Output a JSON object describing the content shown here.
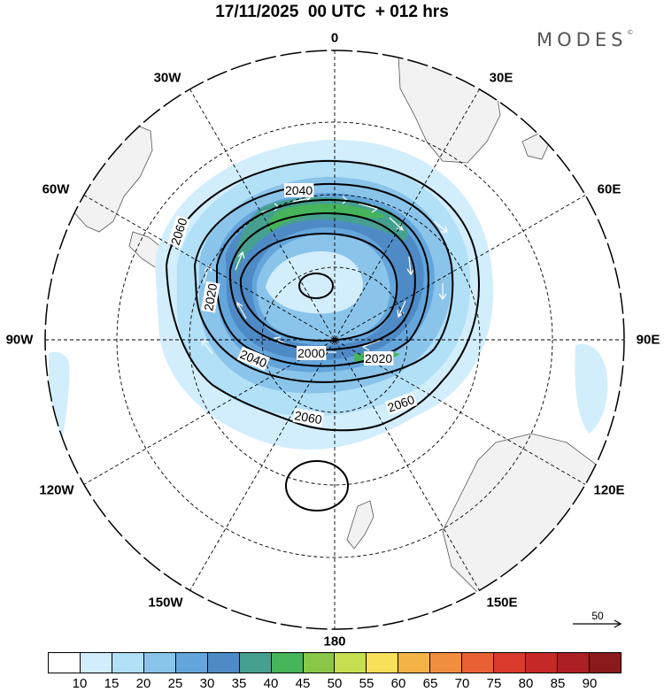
{
  "title": "17/11/2025  00 UTC  + 012 hrs",
  "brand": "MODES",
  "brand_mark": "©",
  "map": {
    "projection": "south-polar-stereographic",
    "field": "wind speed (shaded) and geopotential height (contours)",
    "longitude_labels": {
      "lon_0": "0",
      "lon_30e": "30E",
      "lon_60e": "60E",
      "lon_90e": "90E",
      "lon_120e": "120E",
      "lon_150e": "150E",
      "lon_180": "180",
      "lon_150w": "150W",
      "lon_120w": "120W",
      "lon_90w": "90W",
      "lon_60w": "60W",
      "lon_30w": "30W"
    },
    "contour_labels": [
      "2040",
      "2060",
      "2020",
      "2000",
      "2020",
      "2040",
      "2060",
      "2060"
    ],
    "reference_vector": "50",
    "colors": {
      "land": "#f2f2f2",
      "coast": "#555555",
      "grid": "#000000",
      "contour": "#000000",
      "vector": "#ffffff"
    }
  },
  "colorbar": {
    "ticks": [
      "10",
      "15",
      "20",
      "25",
      "30",
      "35",
      "40",
      "45",
      "50",
      "55",
      "60",
      "65",
      "70",
      "75",
      "80",
      "85",
      "90"
    ],
    "colors": [
      "#ffffff",
      "#d2eefd",
      "#b2e0f7",
      "#8ac4ea",
      "#64a6dc",
      "#4e8bc6",
      "#46a08f",
      "#46b45a",
      "#88c748",
      "#c6de50",
      "#f8e05a",
      "#f4b347",
      "#f18e3d",
      "#e96034",
      "#d93a2c",
      "#c62827",
      "#ab1f25",
      "#8c1a1c"
    ]
  }
}
